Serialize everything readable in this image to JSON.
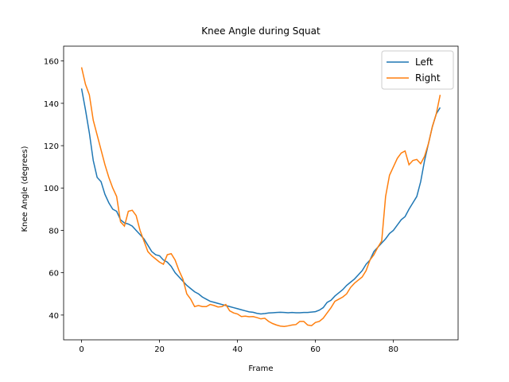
{
  "chart_data": {
    "type": "line",
    "title": "Knee Angle during Squat",
    "xlabel": "Frame",
    "ylabel": "Knee Angle (degrees)",
    "x": [
      0,
      1,
      2,
      3,
      4,
      5,
      6,
      7,
      8,
      9,
      10,
      11,
      12,
      13,
      14,
      15,
      16,
      17,
      18,
      19,
      20,
      21,
      22,
      23,
      24,
      25,
      26,
      27,
      28,
      29,
      30,
      31,
      32,
      33,
      34,
      35,
      36,
      37,
      38,
      39,
      40,
      41,
      42,
      43,
      44,
      45,
      46,
      47,
      48,
      49,
      50,
      51,
      52,
      53,
      54,
      55,
      56,
      57,
      58,
      59,
      60,
      61,
      62,
      63,
      64,
      65,
      66,
      67,
      68,
      69,
      70,
      71,
      72,
      73,
      74,
      75,
      76,
      77,
      78,
      79,
      80,
      81,
      82,
      83,
      84,
      85,
      86,
      87,
      88,
      89,
      90,
      91,
      92
    ],
    "series": [
      {
        "name": "Left",
        "color": "#1f77b4",
        "values": [
          147,
          137,
          126,
          113,
          105,
          103,
          97,
          93,
          90,
          89,
          85,
          83.5,
          83,
          82,
          80,
          78,
          76,
          73,
          70,
          68.5,
          68,
          66,
          65,
          63,
          60,
          58,
          56,
          54,
          52.5,
          51,
          50,
          48.5,
          47.5,
          46.5,
          46,
          45.5,
          45,
          44.5,
          44,
          43.5,
          43,
          42.5,
          42,
          41.5,
          41.3,
          40.8,
          40.5,
          40.7,
          41,
          41.1,
          41.2,
          41.3,
          41.2,
          41.1,
          41.2,
          41.1,
          41.1,
          41.2,
          41.2,
          41.4,
          41.6,
          42.3,
          43.5,
          46,
          47,
          49,
          50.5,
          52,
          54,
          55.5,
          57,
          59,
          61,
          64,
          66,
          70,
          72,
          74,
          76,
          78.5,
          80,
          82.5,
          85,
          86.5,
          90,
          93,
          96,
          103,
          113,
          121,
          129,
          135,
          138
        ]
      },
      {
        "name": "Right",
        "color": "#ff7f0e",
        "values": [
          157,
          149,
          144,
          132,
          125,
          118,
          111,
          105,
          100,
          96,
          84,
          82,
          89,
          89.5,
          87,
          80,
          75,
          70,
          68,
          66.5,
          65,
          64,
          68.5,
          69,
          66,
          61,
          57,
          50,
          47.5,
          44,
          44.5,
          44,
          44,
          45,
          44.5,
          43.8,
          44,
          45,
          42,
          41,
          40.5,
          39.3,
          39.5,
          39.2,
          39.3,
          38.8,
          38.2,
          38.5,
          37,
          36,
          35.3,
          34.8,
          34.6,
          34.9,
          35.3,
          35.5,
          37,
          37,
          35.3,
          35,
          36.5,
          37,
          38.5,
          41,
          43.5,
          46.5,
          47.5,
          48.5,
          50,
          53,
          55,
          56.5,
          58,
          61,
          66,
          68.5,
          72,
          75,
          96,
          106,
          110,
          114,
          116.5,
          117.5,
          111,
          113,
          113.5,
          111.5,
          115,
          121,
          129,
          135,
          144
        ]
      }
    ],
    "xlim": [
      -4.6,
      96.6
    ],
    "ylim": [
      28.3,
      167
    ],
    "xticks": [
      0,
      20,
      40,
      60,
      80
    ],
    "yticks": [
      40,
      60,
      80,
      100,
      120,
      140,
      160
    ],
    "legend": "upper right"
  }
}
